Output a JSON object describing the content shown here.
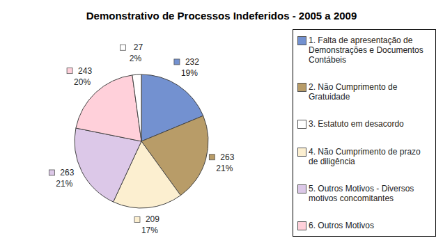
{
  "chart_data": {
    "type": "pie",
    "title": "Demonstrativo de Processos Indeferidos - 2005 a 2009",
    "categories": [
      "1. Falta de apresentação de Demonstrações e Documentos Contábeis",
      "2. Não Cumprimento de Gratuidade",
      "4. Não Cumprimento de prazo de diligência",
      "5. Outros Motivos - Diversos motivos concomitantes",
      "6. Outros Motivos",
      "3. Estatuto em desacordo"
    ],
    "values": [
      232,
      263,
      209,
      263,
      243,
      27
    ],
    "value_labels": [
      "232\n19%",
      "263\n21%",
      "209\n17%",
      "263\n21%",
      "243\n20%",
      "27\n2%"
    ],
    "colors": [
      "#7391d0",
      "#b89c68",
      "#fcefd0",
      "#dcc8e8",
      "#ffd0da",
      "#ffffff"
    ],
    "legend": "right"
  }
}
